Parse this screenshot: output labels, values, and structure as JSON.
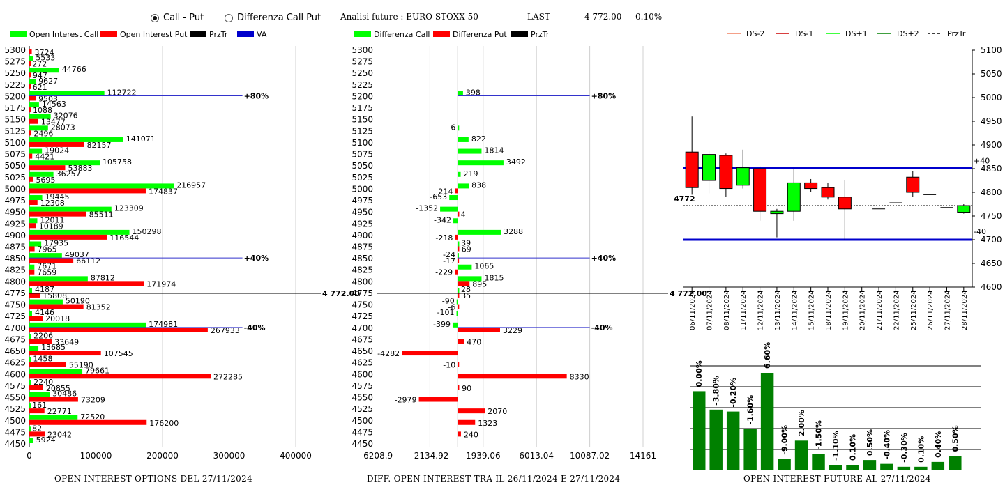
{
  "controls": {
    "radio_call_put": {
      "label": "Call - Put",
      "selected": true
    },
    "radio_diff": {
      "label": "Differenza Call Put",
      "selected": false
    }
  },
  "header": {
    "title": "Analisi future : EURO STOXX 50 -",
    "last_label": "LAST",
    "last_value": "4 772.00",
    "change": "0.10%"
  },
  "colors": {
    "green": "#00ff00",
    "red": "#ff0000",
    "black": "#000000",
    "blue": "#0000cc",
    "dark_green": "#008000",
    "salmon": "#f08060"
  },
  "chart_data": [
    {
      "type": "bar",
      "orientation": "horizontal",
      "legend": [
        "Open Interest Call",
        "Open Interest Put",
        "PrzTr",
        "VA"
      ],
      "strikes": [
        5300,
        5275,
        5250,
        5225,
        5200,
        5175,
        5150,
        5125,
        5100,
        5075,
        5050,
        5025,
        5000,
        4975,
        4950,
        4925,
        4900,
        4875,
        4850,
        4825,
        4800,
        4775,
        4750,
        4725,
        4700,
        4675,
        4650,
        4625,
        4600,
        4575,
        4550,
        4525,
        4500,
        4475,
        4450
      ],
      "series": [
        {
          "name": "Open Interest Call",
          "values": [
            null,
            5533,
            44766,
            9627,
            112722,
            14563,
            32076,
            28073,
            141071,
            19024,
            105758,
            36257,
            216957,
            19445,
            123309,
            12011,
            150298,
            17935,
            49037,
            7671,
            87812,
            4187,
            50190,
            4146,
            174981,
            2206,
            13685,
            1458,
            79661,
            2240,
            30486,
            161,
            72520,
            82,
            5924
          ]
        },
        {
          "name": "Open Interest Put",
          "values": [
            3724,
            272,
            947,
            621,
            9503,
            1088,
            13477,
            2496,
            82157,
            4421,
            53883,
            5695,
            174837,
            12308,
            85511,
            10189,
            116544,
            7965,
            66112,
            7659,
            171974,
            15808,
            81352,
            20018,
            267933,
            33649,
            107545,
            55190,
            272285,
            20855,
            73209,
            22771,
            176200,
            23042,
            null
          ]
        }
      ],
      "xlim": [
        0,
        400000
      ],
      "xticks": [
        "0",
        "100000",
        "200000",
        "300000",
        "400000"
      ],
      "reference_lines": [
        {
          "strike": 5200,
          "label": "+80%",
          "color": "blue"
        },
        {
          "strike": 4850,
          "label": "+40%",
          "color": "blue"
        },
        {
          "strike": 4775,
          "label": "4 772.00",
          "color": "black"
        },
        {
          "strike": 4700,
          "label": "-40%",
          "color": "blue"
        }
      ],
      "caption": "OPEN INTEREST OPTIONS DEL 27/11/2024"
    },
    {
      "type": "bar",
      "orientation": "horizontal",
      "legend": [
        "Differenza Call",
        "Differenza Put",
        "PrzTr"
      ],
      "strikes": [
        5300,
        5275,
        5250,
        5225,
        5200,
        5175,
        5150,
        5125,
        5100,
        5075,
        5050,
        5025,
        5000,
        4975,
        4950,
        4925,
        4900,
        4875,
        4850,
        4825,
        4800,
        4775,
        4750,
        4725,
        4700,
        4675,
        4650,
        4625,
        4600,
        4575,
        4550,
        4525,
        4500,
        4475,
        4450
      ],
      "series": [
        {
          "name": "Differenza Call",
          "values": [
            null,
            null,
            null,
            null,
            398,
            null,
            null,
            -6,
            822,
            1814,
            3492,
            219,
            838,
            -653,
            -1352,
            -342,
            3288,
            39,
            -24,
            1065,
            1815,
            28,
            -90,
            -101,
            -399,
            null,
            null,
            null,
            null,
            null,
            null,
            null,
            null,
            null,
            null
          ]
        },
        {
          "name": "Differenza Put",
          "values": [
            null,
            null,
            null,
            null,
            null,
            null,
            null,
            null,
            null,
            null,
            null,
            null,
            -214,
            null,
            4,
            null,
            -218,
            69,
            -17,
            -229,
            895,
            35,
            -6,
            null,
            3229,
            470,
            -4282,
            -10,
            8330,
            90,
            -2979,
            2070,
            1323,
            240,
            null
          ]
        }
      ],
      "xlim": [
        -6208.9,
        14161
      ],
      "xticks": [
        "-6208.9",
        "-2134.92",
        "1939.06",
        "6013.04",
        "10087.02",
        "14161"
      ],
      "reference_lines": [
        {
          "strike": 5200,
          "label": "+80%",
          "color": "blue"
        },
        {
          "strike": 4850,
          "label": "+40%",
          "color": "blue"
        },
        {
          "strike": 4775,
          "label": "4 772.00",
          "color": "black"
        },
        {
          "strike": 4700,
          "label": "-40%",
          "color": "blue"
        }
      ],
      "caption": "DIFF. OPEN INTEREST TRA IL 26/11/2024 E 27/11/2024"
    },
    {
      "type": "candlestick",
      "legend": [
        "DS-2",
        "DS-1",
        "DS+1",
        "DS+2",
        "PrzTr"
      ],
      "dates": [
        "06/11/2024",
        "07/11/2024",
        "08/11/2024",
        "11/11/2024",
        "12/11/2024",
        "13/11/2024",
        "14/11/2024",
        "15/11/2024",
        "18/11/2024",
        "19/11/2024",
        "20/11/2024",
        "21/11/2024",
        "22/11/2024",
        "25/11/2024",
        "26/11/2024",
        "27/11/2024",
        "28/11/2024"
      ],
      "candles": [
        {
          "o": 4885,
          "h": 4960,
          "l": 4795,
          "c": 4810
        },
        {
          "o": 4825,
          "h": 4888,
          "l": 4798,
          "c": 4880
        },
        {
          "o": 4878,
          "h": 4882,
          "l": 4790,
          "c": 4808
        },
        {
          "o": 4815,
          "h": 4890,
          "l": 4808,
          "c": 4852
        },
        {
          "o": 4850,
          "h": 4855,
          "l": 4740,
          "c": 4760
        },
        {
          "o": 4755,
          "h": 4765,
          "l": 4705,
          "c": 4760
        },
        {
          "o": 4760,
          "h": 4850,
          "l": 4740,
          "c": 4820
        },
        {
          "o": 4820,
          "h": 4828,
          "l": 4800,
          "c": 4808
        },
        {
          "o": 4810,
          "h": 4820,
          "l": 4785,
          "c": 4790
        },
        {
          "o": 4790,
          "h": 4825,
          "l": 4700,
          "c": 4765
        },
        {
          "o": 4767,
          "h": 4767,
          "l": 4767,
          "c": 4767
        },
        {
          "o": 4765,
          "h": 4765,
          "l": 4765,
          "c": 4765
        },
        {
          "o": 4778,
          "h": 4778,
          "l": 4778,
          "c": 4778
        },
        {
          "o": 4832,
          "h": 4845,
          "l": 4790,
          "c": 4800
        },
        {
          "o": 4795,
          "h": 4795,
          "l": 4795,
          "c": 4795
        },
        {
          "o": 4768,
          "h": 4768,
          "l": 4768,
          "c": 4768
        },
        {
          "o": 4758,
          "h": 4775,
          "l": 4755,
          "c": 4772
        }
      ],
      "ylim": [
        4600,
        5100
      ],
      "yticks": [
        "4600",
        "4650",
        "4700",
        "4750",
        "4800",
        "4850",
        "4900",
        "4950",
        "5000",
        "5050",
        "5100"
      ],
      "bands": [
        {
          "value": 4852,
          "label": "+40",
          "color": "blue"
        },
        {
          "value": 4700,
          "label": "-40",
          "color": "blue"
        }
      ],
      "price_line": {
        "value": 4772,
        "label": "4772"
      }
    },
    {
      "type": "bar",
      "categories": [
        "06/11/2024",
        "07/11/2024",
        "08/11/2024",
        "11/11/2024",
        "12/11/2024",
        "13/11/2024",
        "14/11/2024",
        "15/11/2024",
        "18/11/2024",
        "19/11/2024",
        "20/11/2024",
        "21/11/2024",
        "22/11/2024",
        "25/11/2024",
        "26/11/2024",
        "27/11/2024",
        "28/11/2024"
      ],
      "labels": [
        "0.00%",
        "-3.80%",
        "-0.20%",
        "-1.60%",
        "6.60%",
        "-9.00%",
        "2.00%",
        "-1.50%",
        "-1.10%",
        "0.10%",
        "0.50%",
        "-0.40%",
        "-0.30%",
        "0.10%",
        "0.40%",
        "0.50%",
        ""
      ],
      "heights": [
        0.81,
        0.62,
        0.6,
        0.42,
        1.0,
        0.11,
        0.3,
        0.16,
        0.05,
        0.05,
        0.1,
        0.06,
        0.03,
        0.03,
        0.08,
        0.14,
        0
      ],
      "caption": "OPEN INTEREST FUTURE AL 27/11/2024"
    }
  ]
}
